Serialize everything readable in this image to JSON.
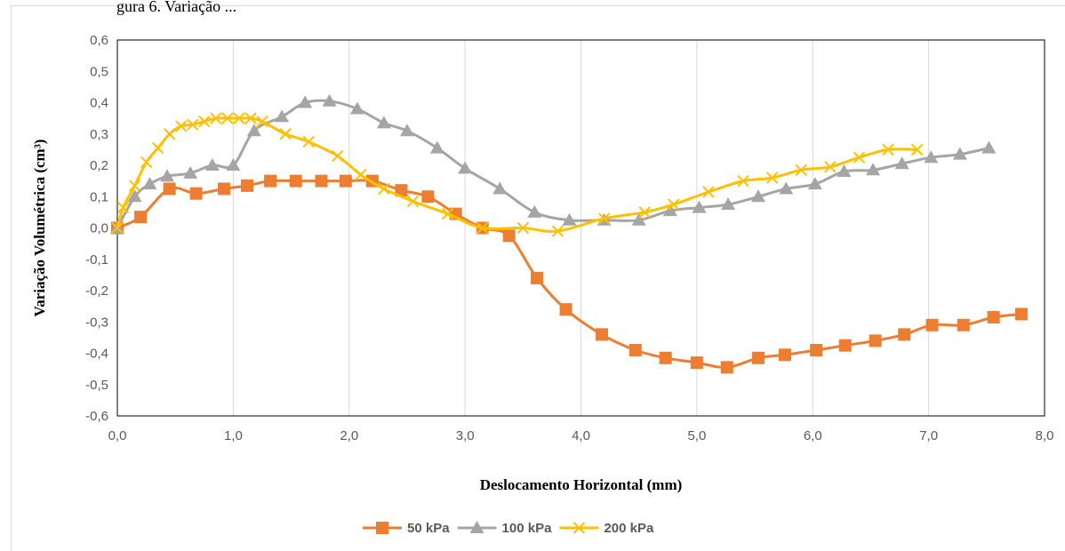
{
  "caption_fragment": "gura 6. Variação ...",
  "chart_data": {
    "type": "line",
    "title": "",
    "xlabel": "Deslocamento Horizontal (mm)",
    "ylabel": "Variação Volumétrica (cm³)",
    "xlim": [
      0,
      8
    ],
    "ylim": [
      -0.6,
      0.6
    ],
    "x_ticks": [
      "0,0",
      "1,0",
      "2,0",
      "3,0",
      "4,0",
      "5,0",
      "6,0",
      "7,0",
      "8,0"
    ],
    "y_ticks": [
      "0,6",
      "0,5",
      "0,4",
      "0,3",
      "0,2",
      "0,1",
      "0,0",
      "-0,1",
      "-0,2",
      "-0,3",
      "-0,4",
      "-0,5",
      "-0,6"
    ],
    "grid": "vertical",
    "legend_position": "bottom",
    "series": [
      {
        "name": "50 kPa",
        "color": "#ed7d31",
        "marker": "square",
        "x": [
          0.0,
          0.2,
          0.45,
          0.68,
          0.92,
          1.12,
          1.32,
          1.54,
          1.76,
          1.97,
          2.2,
          2.45,
          2.68,
          2.92,
          3.15,
          3.38,
          3.62,
          3.87,
          4.18,
          4.47,
          4.73,
          5.0,
          5.26,
          5.53,
          5.76,
          6.03,
          6.28,
          6.54,
          6.79,
          7.03,
          7.3,
          7.56,
          7.8
        ],
        "y": [
          0.0,
          0.035,
          0.125,
          0.11,
          0.125,
          0.135,
          0.15,
          0.15,
          0.15,
          0.15,
          0.15,
          0.12,
          0.1,
          0.045,
          0.0,
          -0.025,
          -0.16,
          -0.26,
          -0.34,
          -0.39,
          -0.415,
          -0.43,
          -0.445,
          -0.415,
          -0.405,
          -0.39,
          -0.375,
          -0.36,
          -0.34,
          -0.31,
          -0.31,
          -0.285,
          -0.275
        ]
      },
      {
        "name": "100 kPa",
        "color": "#a5a5a5",
        "marker": "triangle",
        "x": [
          0.0,
          0.15,
          0.28,
          0.43,
          0.63,
          0.82,
          1.0,
          1.18,
          1.42,
          1.62,
          1.83,
          2.07,
          2.3,
          2.5,
          2.76,
          3.0,
          3.3,
          3.6,
          3.9,
          4.2,
          4.5,
          4.77,
          5.02,
          5.27,
          5.53,
          5.77,
          6.02,
          6.27,
          6.52,
          6.77,
          7.02,
          7.27,
          7.52
        ],
        "y": [
          0.0,
          0.1,
          0.14,
          0.165,
          0.175,
          0.2,
          0.2,
          0.31,
          0.355,
          0.4,
          0.405,
          0.38,
          0.335,
          0.31,
          0.255,
          0.19,
          0.125,
          0.05,
          0.025,
          0.025,
          0.025,
          0.055,
          0.065,
          0.075,
          0.1,
          0.125,
          0.14,
          0.18,
          0.185,
          0.205,
          0.225,
          0.235,
          0.255
        ]
      },
      {
        "name": "200 kPa",
        "color": "#ffc000",
        "marker": "x",
        "x": [
          0.0,
          0.05,
          0.15,
          0.25,
          0.35,
          0.45,
          0.55,
          0.65,
          0.75,
          0.85,
          0.95,
          1.05,
          1.15,
          1.25,
          1.45,
          1.65,
          1.9,
          2.1,
          2.3,
          2.55,
          2.85,
          3.15,
          3.5,
          3.8,
          4.2,
          4.55,
          4.8,
          5.1,
          5.4,
          5.65,
          5.9,
          6.15,
          6.4,
          6.65,
          6.9
        ],
        "y": [
          0.0,
          0.065,
          0.135,
          0.21,
          0.255,
          0.3,
          0.325,
          0.33,
          0.34,
          0.35,
          0.35,
          0.35,
          0.35,
          0.34,
          0.3,
          0.275,
          0.23,
          0.17,
          0.125,
          0.085,
          0.045,
          0.0,
          0.0,
          -0.01,
          0.03,
          0.05,
          0.075,
          0.115,
          0.15,
          0.16,
          0.185,
          0.195,
          0.225,
          0.25,
          0.25
        ]
      }
    ]
  }
}
